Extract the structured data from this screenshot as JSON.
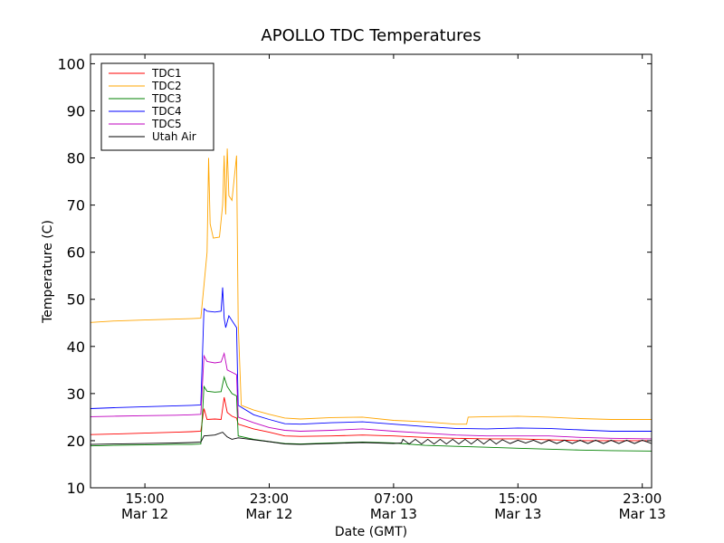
{
  "chart_data": {
    "type": "line",
    "title": "APOLLO TDC Temperatures",
    "xlabel": "Date (GMT)",
    "ylabel": "Temperature (C)",
    "ylim": [
      10,
      102
    ],
    "xlim": [
      11.5,
      47.6
    ],
    "yticks": [
      10,
      20,
      30,
      40,
      50,
      60,
      70,
      80,
      90,
      100
    ],
    "xticks": [
      {
        "x": 15,
        "line1": "15:00",
        "line2": "Mar 12"
      },
      {
        "x": 23,
        "line1": "23:00",
        "line2": "Mar 12"
      },
      {
        "x": 31,
        "line1": "07:00",
        "line2": "Mar 13"
      },
      {
        "x": 39,
        "line1": "15:00",
        "line2": "Mar 13"
      },
      {
        "x": 47,
        "line1": "23:00",
        "line2": "Mar 13"
      }
    ],
    "legend_position": "top-left",
    "series": [
      {
        "name": "TDC1",
        "color": "#ff0000",
        "points": [
          [
            11.5,
            21.3
          ],
          [
            13,
            21.4
          ],
          [
            15,
            21.6
          ],
          [
            17,
            21.8
          ],
          [
            18,
            21.9
          ],
          [
            18.6,
            22.0
          ],
          [
            18.8,
            26.8
          ],
          [
            19,
            24.5
          ],
          [
            19.5,
            24.6
          ],
          [
            19.9,
            24.5
          ],
          [
            20.1,
            29.2
          ],
          [
            20.3,
            26.0
          ],
          [
            20.6,
            25.2
          ],
          [
            20.9,
            24.8
          ],
          [
            21,
            23.5
          ],
          [
            22,
            22.5
          ],
          [
            23,
            21.8
          ],
          [
            24,
            21.0
          ],
          [
            25,
            20.9
          ],
          [
            27,
            21.0
          ],
          [
            29,
            21.2
          ],
          [
            31,
            21.0
          ],
          [
            33,
            20.7
          ],
          [
            35,
            20.5
          ],
          [
            37,
            20.4
          ],
          [
            39,
            20.4
          ],
          [
            41,
            20.2
          ],
          [
            43,
            20.0
          ],
          [
            45,
            20.0
          ],
          [
            47.6,
            20.0
          ]
        ]
      },
      {
        "name": "TDC2",
        "color": "#ffa500",
        "points": [
          [
            11.5,
            45.1
          ],
          [
            13,
            45.4
          ],
          [
            15,
            45.6
          ],
          [
            17,
            45.8
          ],
          [
            18,
            45.9
          ],
          [
            18.6,
            46.0
          ],
          [
            18.8,
            53.0
          ],
          [
            19,
            60.0
          ],
          [
            19.1,
            80.0
          ],
          [
            19.2,
            66.0
          ],
          [
            19.4,
            63.0
          ],
          [
            19.8,
            63.2
          ],
          [
            20,
            70.0
          ],
          [
            20.1,
            80.5
          ],
          [
            20.2,
            68.0
          ],
          [
            20.3,
            82.0
          ],
          [
            20.4,
            72.0
          ],
          [
            20.6,
            71.0
          ],
          [
            20.9,
            80.5
          ],
          [
            21,
            45.0
          ],
          [
            21.2,
            27.5
          ],
          [
            22,
            26.5
          ],
          [
            23,
            25.6
          ],
          [
            24,
            24.8
          ],
          [
            25,
            24.6
          ],
          [
            27,
            24.9
          ],
          [
            29,
            25.0
          ],
          [
            31,
            24.3
          ],
          [
            33,
            24.0
          ],
          [
            35,
            23.5
          ],
          [
            35.7,
            23.5
          ],
          [
            35.8,
            25.0
          ],
          [
            37,
            25.1
          ],
          [
            39,
            25.2
          ],
          [
            41,
            25.0
          ],
          [
            43,
            24.7
          ],
          [
            45,
            24.5
          ],
          [
            47.6,
            24.5
          ]
        ]
      },
      {
        "name": "TDC3",
        "color": "#008000",
        "points": [
          [
            11.5,
            18.9
          ],
          [
            13,
            19.0
          ],
          [
            15,
            19.1
          ],
          [
            17,
            19.2
          ],
          [
            18,
            19.2
          ],
          [
            18.6,
            19.3
          ],
          [
            18.8,
            31.5
          ],
          [
            19,
            30.5
          ],
          [
            19.5,
            30.3
          ],
          [
            19.9,
            30.4
          ],
          [
            20.1,
            33.5
          ],
          [
            20.3,
            31.5
          ],
          [
            20.6,
            30.0
          ],
          [
            20.9,
            29.5
          ],
          [
            21,
            21.0
          ],
          [
            22,
            20.3
          ],
          [
            23,
            19.8
          ],
          [
            24,
            19.4
          ],
          [
            25,
            19.3
          ],
          [
            27,
            19.5
          ],
          [
            29,
            19.7
          ],
          [
            31,
            19.5
          ],
          [
            33,
            19.0
          ],
          [
            35,
            18.8
          ],
          [
            37,
            18.6
          ],
          [
            39,
            18.4
          ],
          [
            41,
            18.2
          ],
          [
            43,
            18.0
          ],
          [
            45,
            17.9
          ],
          [
            47.6,
            17.8
          ]
        ]
      },
      {
        "name": "TDC4",
        "color": "#0000ff",
        "points": [
          [
            11.5,
            26.8
          ],
          [
            13,
            27.0
          ],
          [
            15,
            27.2
          ],
          [
            17,
            27.4
          ],
          [
            18,
            27.5
          ],
          [
            18.6,
            27.6
          ],
          [
            18.8,
            48.0
          ],
          [
            19,
            47.5
          ],
          [
            19.5,
            47.3
          ],
          [
            19.9,
            47.5
          ],
          [
            20.0,
            52.5
          ],
          [
            20.1,
            46.0
          ],
          [
            20.2,
            44.0
          ],
          [
            20.4,
            46.5
          ],
          [
            20.9,
            44.0
          ],
          [
            21,
            27.5
          ],
          [
            22,
            25.5
          ],
          [
            23,
            24.5
          ],
          [
            24,
            23.6
          ],
          [
            25,
            23.5
          ],
          [
            27,
            23.8
          ],
          [
            29,
            24.0
          ],
          [
            31,
            23.5
          ],
          [
            33,
            23.0
          ],
          [
            35,
            22.6
          ],
          [
            37,
            22.5
          ],
          [
            39,
            22.7
          ],
          [
            41,
            22.6
          ],
          [
            43,
            22.3
          ],
          [
            45,
            22.0
          ],
          [
            47.6,
            22.0
          ]
        ]
      },
      {
        "name": "TDC5",
        "color": "#bf00bf",
        "points": [
          [
            11.5,
            25.1
          ],
          [
            13,
            25.2
          ],
          [
            15,
            25.3
          ],
          [
            17,
            25.4
          ],
          [
            18,
            25.5
          ],
          [
            18.6,
            25.6
          ],
          [
            18.8,
            38.0
          ],
          [
            19,
            36.8
          ],
          [
            19.5,
            36.5
          ],
          [
            19.9,
            36.7
          ],
          [
            20.1,
            38.5
          ],
          [
            20.3,
            35.0
          ],
          [
            20.6,
            34.5
          ],
          [
            20.9,
            34.0
          ],
          [
            21,
            25.0
          ],
          [
            22,
            23.8
          ],
          [
            23,
            22.8
          ],
          [
            24,
            22.2
          ],
          [
            25,
            22.0
          ],
          [
            27,
            22.2
          ],
          [
            29,
            22.5
          ],
          [
            31,
            22.0
          ],
          [
            33,
            21.6
          ],
          [
            35,
            21.2
          ],
          [
            37,
            21.0
          ],
          [
            39,
            21.0
          ],
          [
            41,
            21.0
          ],
          [
            43,
            20.7
          ],
          [
            45,
            20.5
          ],
          [
            47.6,
            20.4
          ]
        ]
      },
      {
        "name": "Utah Air",
        "color": "#000000",
        "points": [
          [
            11.5,
            19.2
          ],
          [
            13,
            19.3
          ],
          [
            15,
            19.4
          ],
          [
            17,
            19.5
          ],
          [
            18,
            19.6
          ],
          [
            18.6,
            19.7
          ],
          [
            18.8,
            21.0
          ],
          [
            19.5,
            21.2
          ],
          [
            20,
            21.8
          ],
          [
            20.3,
            20.8
          ],
          [
            20.6,
            20.3
          ],
          [
            21,
            20.6
          ],
          [
            22,
            20.2
          ],
          [
            23,
            19.8
          ],
          [
            24,
            19.3
          ],
          [
            25,
            19.2
          ],
          [
            27,
            19.4
          ],
          [
            29,
            19.6
          ],
          [
            31,
            19.4
          ],
          [
            31.5,
            19.5
          ],
          [
            31.6,
            20.3
          ],
          [
            32,
            19.3
          ],
          [
            32.4,
            20.3
          ],
          [
            32.8,
            19.3
          ],
          [
            33.2,
            20.3
          ],
          [
            33.6,
            19.3
          ],
          [
            34,
            20.3
          ],
          [
            34.4,
            19.3
          ],
          [
            34.8,
            20.3
          ],
          [
            35.2,
            19.3
          ],
          [
            35.6,
            20.3
          ],
          [
            36,
            19.3
          ],
          [
            36.4,
            20.3
          ],
          [
            36.8,
            19.3
          ],
          [
            37.2,
            20.3
          ],
          [
            37.6,
            19.3
          ],
          [
            38,
            20.2
          ],
          [
            38.5,
            19.4
          ],
          [
            39,
            20.1
          ],
          [
            39.5,
            19.5
          ],
          [
            40,
            20.1
          ],
          [
            40.5,
            19.4
          ],
          [
            41,
            20.1
          ],
          [
            41.5,
            19.4
          ],
          [
            42,
            20.1
          ],
          [
            42.5,
            19.4
          ],
          [
            43,
            20.1
          ],
          [
            43.5,
            19.4
          ],
          [
            44,
            20.1
          ],
          [
            44.5,
            19.4
          ],
          [
            45,
            20.1
          ],
          [
            45.5,
            19.4
          ],
          [
            46,
            20.1
          ],
          [
            46.5,
            19.4
          ],
          [
            47,
            20.1
          ],
          [
            47.6,
            19.4
          ]
        ]
      }
    ]
  }
}
